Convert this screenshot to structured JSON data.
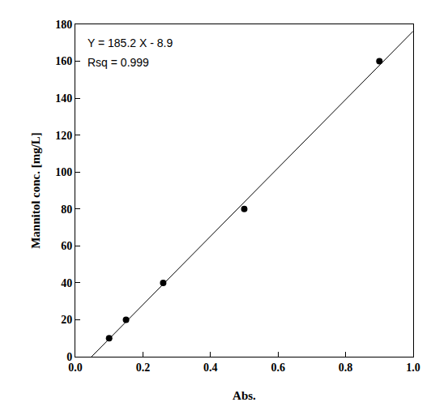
{
  "chart_data": {
    "type": "scatter",
    "x_label": "Abs.",
    "y_label": "Mannitol conc. [mg/L]",
    "annotations": [
      "Y = 185.2 X - 8.9",
      "Rsq = 0.999"
    ],
    "xlim": [
      0,
      1
    ],
    "ylim": [
      0,
      180
    ],
    "xticks": [
      {
        "value": 0,
        "label": "0.0"
      },
      {
        "value": 0.2,
        "label": "0.2"
      },
      {
        "value": 0.4,
        "label": "0.4"
      },
      {
        "value": 0.6,
        "label": "0.6"
      },
      {
        "value": 0.8,
        "label": "0.8"
      },
      {
        "value": 1,
        "label": "1.0"
      }
    ],
    "yticks": [
      0,
      20,
      40,
      60,
      80,
      100,
      120,
      140,
      160,
      180
    ],
    "grid": false,
    "series": [
      {
        "type": "scatter",
        "marker": "circle",
        "color": "#000000",
        "x": [
          0.1,
          0.15,
          0.26,
          0.5,
          0.9
        ],
        "values": [
          10,
          20,
          40,
          80,
          160
        ]
      },
      {
        "type": "line",
        "line_style": "solid",
        "color": "#000000",
        "x": [
          0.048,
          1.0
        ],
        "values": [
          0,
          176.3
        ]
      }
    ]
  }
}
